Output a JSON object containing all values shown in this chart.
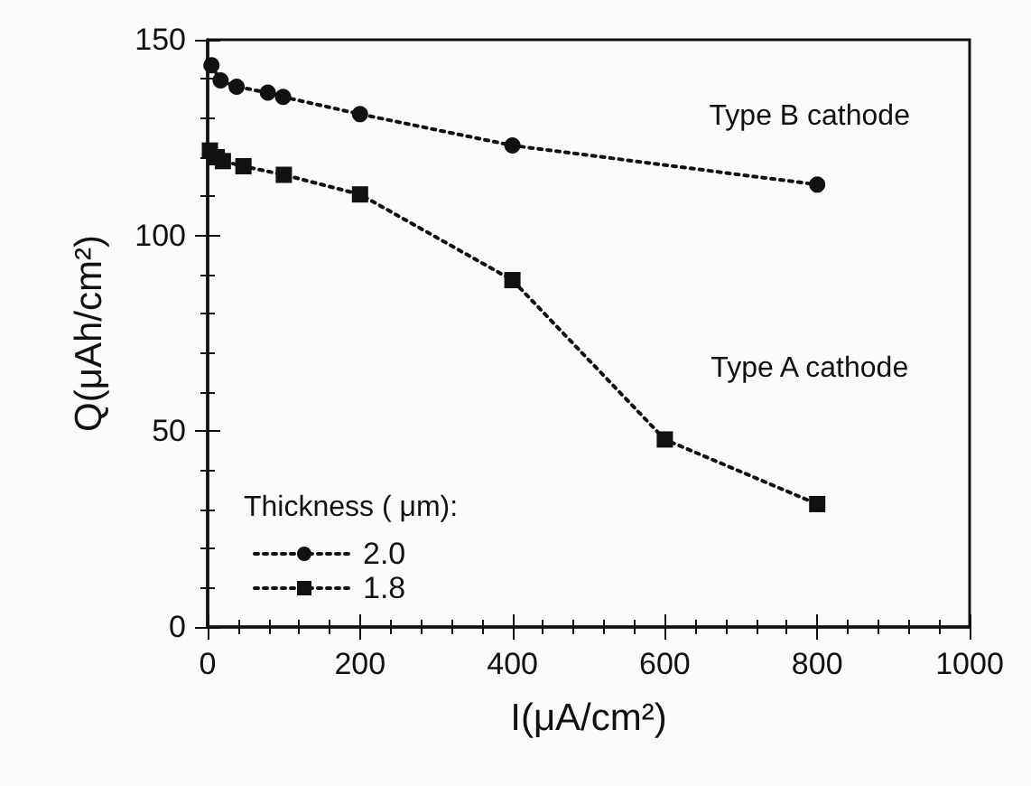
{
  "chart_data": {
    "type": "line",
    "xlabel": "I(μA/cm²)",
    "ylabel": "Q(μAh/cm²)",
    "legend_title": "Thickness ( μm):",
    "xlim": [
      0,
      1000
    ],
    "xticks": [
      0,
      200,
      400,
      600,
      800,
      1000
    ],
    "ylim": [
      0,
      150
    ],
    "yticks": [
      0,
      50,
      100,
      150
    ],
    "grid": false,
    "legend": "bottom left",
    "line_style": "dotted",
    "series": [
      {
        "name": "2.0",
        "color": "#111111",
        "marker": "circle",
        "x": [
          5,
          17,
          38,
          79,
          99,
          200,
          400,
          800
        ],
        "values": [
          143.5,
          139.6,
          138,
          136.5,
          135.4,
          131,
          123,
          113
        ]
      },
      {
        "name": "1.8",
        "color": "#111111",
        "marker": "square",
        "x": [
          3,
          12,
          20,
          47,
          100,
          200,
          400,
          600,
          800
        ],
        "values": [
          121.7,
          120,
          119,
          117.7,
          115.5,
          110.5,
          88.6,
          47.9,
          31.4
        ]
      }
    ],
    "annotations": [
      "Type B cathode",
      "Type A cathode"
    ]
  }
}
